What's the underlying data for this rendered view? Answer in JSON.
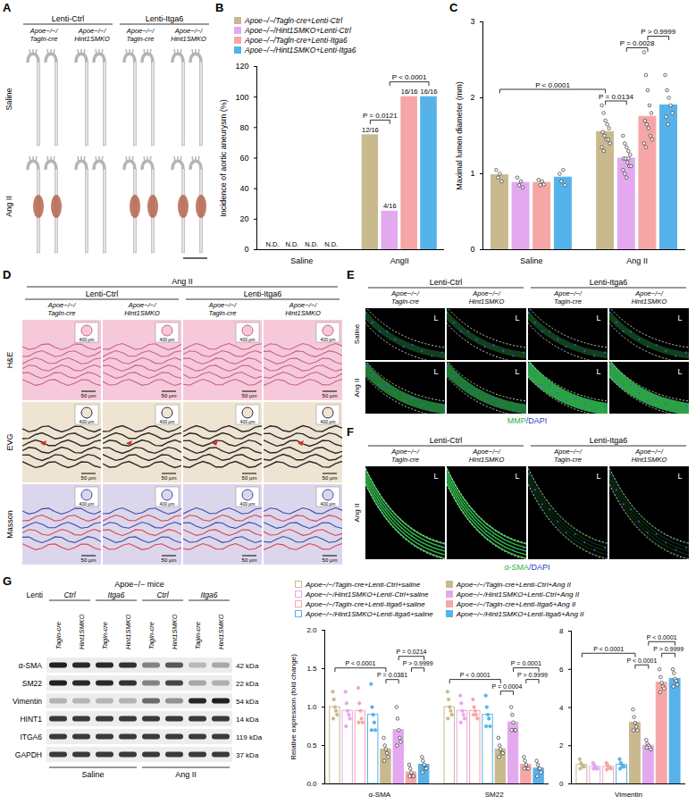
{
  "panels": [
    {
      "panel": "A",
      "column_groups": [
        "Lenti-Ctrl",
        "Lenti-Itga6"
      ],
      "genotypes": [
        "Apoe−/−/Tagln-cre",
        "Apoe−/−/Hint1SMKO"
      ],
      "rows": [
        "Saline",
        "Ang II"
      ]
    },
    {
      "panel": "D",
      "treatment": "Ang II",
      "column_groups": [
        "Lenti-Ctrl",
        "Lenti-Itga6"
      ],
      "genotypes": [
        "Apoe−/−/Tagln-cre",
        "Apoe−/−/Hint1SMKO"
      ],
      "rows": [
        "H&E",
        "EVG",
        "Masson"
      ],
      "scale_bars": [
        "50 μm",
        "400 μm"
      ]
    },
    {
      "panel": "E",
      "column_groups": [
        "Lenti-Ctrl",
        "Lenti-Itga6"
      ],
      "genotypes": [
        "Apoe−/−/Tagln-cre",
        "Apoe−/−/Hint1SMKO"
      ],
      "rows": [
        "Saline",
        "Ang II"
      ],
      "lumen": "L",
      "stain": [
        {
          "text": "MMP",
          "color": "#2fb14a"
        },
        {
          "text": "/DAPI",
          "color": "#2343c8"
        }
      ]
    },
    {
      "panel": "F",
      "column_groups": [
        "Lenti-Ctrl",
        "Lenti-Itga6"
      ],
      "genotypes": [
        "Apoe−/−/Tagln-cre",
        "Apoe−/−/Hint1SMKO"
      ],
      "rows": [
        "Ang II"
      ],
      "lumen": "L",
      "stain": [
        {
          "text": "α-SMA",
          "color": "#2fb14a"
        },
        {
          "text": "/DAPI",
          "color": "#2343c8"
        }
      ]
    },
    {
      "panel": "G",
      "title": "Apoe−/− mice",
      "lenti_label": "Lenti",
      "lentis": [
        "Ctrl",
        "Itga6",
        "Ctrl",
        "Itga6"
      ],
      "genotypes": [
        "Tagln-cre",
        "Hint1SMKO"
      ],
      "bands": [
        {
          "name": "α-SMA",
          "kda": 42
        },
        {
          "name": "SM22",
          "kda": 22
        },
        {
          "name": "Vimentin",
          "kda": 54
        },
        {
          "name": "HINT1",
          "kda": 14
        },
        {
          "name": "ITGA6",
          "kda": 119
        },
        {
          "name": "GAPDH",
          "kda": 37
        }
      ],
      "kda_unit": "kDa",
      "treatments": [
        "Saline",
        "Ang II"
      ]
    }
  ],
  "chart_data": [
    {
      "panel": "B",
      "type": "bar",
      "ylabel": "Incidence of aortic aneurysm (%)",
      "categories": [
        "Saline",
        "AngII"
      ],
      "ylim": [
        0,
        120
      ],
      "yticks": [
        0,
        20,
        40,
        60,
        80,
        100,
        120
      ],
      "legend": "top",
      "data_labels": true,
      "series": [
        {
          "name": "Apoe−/−/Tagln-cre+Lenti-Ctrl",
          "color": "#c9b98f",
          "values": [
            0,
            75
          ],
          "value_labels": [
            "N.D.",
            "12/16"
          ]
        },
        {
          "name": "Apoe−/−/Hint1SMKO+Lenti-Ctrl",
          "color": "#e3a8ee",
          "values": [
            0,
            25
          ],
          "value_labels": [
            "N.D.",
            "4/16"
          ]
        },
        {
          "name": "Apoe−/−/Tagln-cre+Lenti-Itga6",
          "color": "#f6a6a6",
          "values": [
            0,
            100
          ],
          "value_labels": [
            "N.D.",
            "16/16"
          ]
        },
        {
          "name": "Apoe−/−/Hint1SMKO+Lenti-Itga6",
          "color": "#56b2ea",
          "values": [
            0,
            100
          ],
          "value_labels": [
            "N.D.",
            "16/16"
          ]
        }
      ],
      "comparisons": [
        {
          "between": [
            {
              "category": "AngII",
              "series": "Apoe−/−/Tagln-cre+Lenti-Ctrl"
            },
            {
              "category": "AngII",
              "series": "Apoe−/−/Hint1SMKO+Lenti-Ctrl"
            }
          ],
          "label": "P = 0.0121"
        },
        {
          "between": [
            {
              "category": "AngII",
              "series": "Apoe−/−/Hint1SMKO+Lenti-Ctrl"
            },
            {
              "category": "AngII",
              "series": "Apoe−/−/Hint1SMKO+Lenti-Itga6"
            }
          ],
          "label": "P < 0.0001"
        }
      ]
    },
    {
      "panel": "C",
      "type": "bar",
      "ylabel": "Maximal lumen diameter (mm)",
      "categories": [
        "Saline",
        "Ang II"
      ],
      "ylim": [
        0,
        3
      ],
      "yticks": [
        0,
        1,
        2,
        3
      ],
      "series": [
        {
          "name": "Apoe−/−/Tagln-cre+Lenti-Ctrl",
          "color": "#c9b98f",
          "values": [
            0.98,
            1.55
          ],
          "points": [
            [
              1.05,
              0.95,
              1.0,
              0.9
            ],
            [
              1.9,
              1.8,
              1.7,
              1.65,
              1.6,
              1.55,
              1.5,
              1.45,
              1.45,
              1.4,
              1.35,
              1.3
            ]
          ]
        },
        {
          "name": "Apoe−/−/Hint1SMKO+Lenti-Ctrl",
          "color": "#e3a8ee",
          "values": [
            0.88,
            1.2
          ],
          "points": [
            [
              0.95,
              0.85,
              0.9,
              0.82
            ],
            [
              1.5,
              1.4,
              1.35,
              1.3,
              1.25,
              1.2,
              1.2,
              1.15,
              1.1,
              1.1,
              1.05,
              1.0,
              0.95,
              1.2
            ]
          ]
        },
        {
          "name": "Apoe−/−/Tagln-cre+Lenti-Itga6",
          "color": "#f6a6a6",
          "values": [
            0.88,
            1.75
          ],
          "points": [
            [
              0.92,
              0.85,
              0.9,
              0.86
            ],
            [
              2.6,
              2.3,
              2.1,
              1.9,
              1.8,
              1.7,
              1.65,
              1.6,
              1.5,
              1.45,
              1.4,
              1.35
            ]
          ]
        },
        {
          "name": "Apoe−/−/Hint1SMKO+Lenti-Itga6",
          "color": "#56b2ea",
          "values": [
            0.95,
            1.9
          ],
          "points": [
            [
              1.0,
              0.9,
              1.05,
              0.85
            ],
            [
              2.3,
              2.1,
              2.0,
              1.9,
              1.8,
              1.75,
              1.65
            ]
          ]
        }
      ],
      "comparisons": [
        {
          "between": [
            {
              "category": "Saline",
              "series": "Apoe−/−/Tagln-cre+Lenti-Ctrl"
            },
            {
              "category": "Ang II",
              "series": "Apoe−/−/Tagln-cre+Lenti-Ctrl"
            }
          ],
          "label": "P < 0.0001"
        },
        {
          "between": [
            {
              "category": "Ang II",
              "series": "Apoe−/−/Tagln-cre+Lenti-Ctrl"
            },
            {
              "category": "Ang II",
              "series": "Apoe−/−/Hint1SMKO+Lenti-Ctrl"
            }
          ],
          "label": "P = 0.0134"
        },
        {
          "between": [
            {
              "category": "Ang II",
              "series": "Apoe−/−/Hint1SMKO+Lenti-Ctrl"
            },
            {
              "category": "Ang II",
              "series": "Apoe−/−/Tagln-cre+Lenti-Itga6"
            }
          ],
          "label": "P = 0.0028"
        },
        {
          "between": [
            {
              "category": "Ang II",
              "series": "Apoe−/−/Tagln-cre+Lenti-Itga6"
            },
            {
              "category": "Ang II",
              "series": "Apoe−/−/Hint1SMKO+Lenti-Itga6"
            }
          ],
          "label": "P > 0.9999"
        }
      ]
    },
    {
      "type": "bar",
      "legend": "top",
      "categories": [
        "α-SMA",
        "SM22",
        "Vimentin"
      ],
      "subplots": [
        {
          "categories": [
            "α-SMA",
            "SM22"
          ],
          "ylabel": "Relative expression (fold change)",
          "ylim": [
            0,
            2
          ],
          "yticks": [
            {
              "value": 0,
              "label": "0.0"
            },
            0.5,
            {
              "value": 1,
              "label": "1.0"
            },
            1.5,
            {
              "value": 2,
              "label": "2.0"
            }
          ]
        },
        {
          "categories": [
            "Vimentin"
          ],
          "ylim": [
            0,
            8
          ],
          "yticks": [
            0,
            2,
            4,
            6,
            8
          ]
        }
      ],
      "series": [
        {
          "name": "Apoe−/−/Tagln-cre+Lenti-Ctrl+saline",
          "color": "#c9b98f",
          "marker": "open",
          "values": [
            1.0,
            1.0,
            1.0
          ],
          "points": [
            [
              1.2,
              1.1,
              1.0,
              0.95,
              0.9,
              0.85
            ],
            [
              1.2,
              1.1,
              1.0,
              0.95,
              0.9,
              0.85
            ],
            [
              1.3,
              1.1,
              1.0,
              0.9,
              0.9,
              0.8
            ]
          ]
        },
        {
          "name": "Apoe−/−/Hint1SMKO+Lenti-Ctrl+saline",
          "color": "#e3a8ee",
          "marker": "open",
          "values": [
            0.95,
            0.95,
            0.9
          ],
          "points": [
            [
              1.2,
              1.05,
              0.95,
              0.9,
              0.85,
              0.75
            ],
            [
              1.15,
              1.05,
              0.95,
              0.9,
              0.85,
              0.8
            ],
            [
              1.1,
              1.0,
              0.9,
              0.8,
              0.8,
              0.8
            ]
          ]
        },
        {
          "name": "Apoe−/−/Tagln-cre+Lenti-Itga6+saline",
          "color": "#f6a6a6",
          "marker": "open",
          "values": [
            0.95,
            0.95,
            0.9
          ],
          "points": [
            [
              1.25,
              1.05,
              0.95,
              0.85,
              0.8,
              0.8
            ],
            [
              1.1,
              1.0,
              0.95,
              0.9,
              0.85,
              0.9
            ],
            [
              1.1,
              1.0,
              0.9,
              0.85,
              0.8,
              0.75
            ]
          ]
        },
        {
          "name": "Apoe−/−/Hint1SMKO+Lenti-Itga6+saline",
          "color": "#56b2ea",
          "marker": "open",
          "values": [
            0.9,
            0.9,
            1.0
          ],
          "points": [
            [
              1.3,
              1.0,
              0.9,
              0.8,
              0.7,
              0.7
            ],
            [
              1.15,
              1.0,
              0.9,
              0.85,
              0.75,
              0.75
            ],
            [
              1.3,
              1.1,
              1.0,
              0.9,
              0.9,
              0.8
            ]
          ]
        },
        {
          "name": "Apoe−/−/Tagln-cre+Lenti-Ctrl+Ang II",
          "color": "#c9b98f",
          "marker": "filled",
          "values": [
            0.45,
            0.45,
            3.2
          ],
          "points": [
            [
              0.6,
              0.5,
              0.45,
              0.4,
              0.35,
              0.3
            ],
            [
              0.6,
              0.5,
              0.45,
              0.4,
              0.4,
              0.35
            ],
            [
              3.9,
              3.5,
              3.2,
              3.0,
              2.8,
              2.8
            ]
          ]
        },
        {
          "name": "Apoe−/−/Hint1SMKO+Lenti-Ctrl+Ang II",
          "color": "#e3a8ee",
          "marker": "filled",
          "values": [
            0.7,
            0.8,
            2.0
          ],
          "points": [
            [
              1.0,
              0.85,
              0.7,
              0.6,
              0.55,
              0.5
            ],
            [
              1.0,
              0.9,
              0.8,
              0.7,
              0.7,
              0.7
            ],
            [
              2.3,
              2.1,
              2.0,
              1.9,
              1.8,
              1.9
            ]
          ]
        },
        {
          "name": "Apoe−/−/Tagln-cre+Lenti-Itga6+Ang II",
          "color": "#f6a6a6",
          "marker": "filled",
          "values": [
            0.15,
            0.25,
            5.3
          ],
          "points": [
            [
              0.25,
              0.2,
              0.15,
              0.1,
              0.1,
              0.1
            ],
            [
              0.35,
              0.3,
              0.25,
              0.2,
              0.2,
              0.2
            ],
            [
              6.0,
              5.6,
              5.3,
              5.1,
              5.0,
              4.8
            ]
          ]
        },
        {
          "name": "Apoe−/−/Hint1SMKO+Lenti-Itga6+Ang II",
          "color": "#56b2ea",
          "marker": "filled",
          "values": [
            0.25,
            0.2,
            5.5
          ],
          "points": [
            [
              0.35,
              0.3,
              0.25,
              0.2,
              0.2,
              0.15
            ],
            [
              0.3,
              0.25,
              0.2,
              0.2,
              0.15,
              0.1
            ],
            [
              6.0,
              5.8,
              5.5,
              5.4,
              5.2,
              5.1
            ]
          ]
        }
      ],
      "comparisons": [
        {
          "between": [
            {
              "category": "α-SMA",
              "series": "Apoe−/−/Tagln-cre+Lenti-Ctrl+saline"
            },
            {
              "category": "α-SMA",
              "series": "Apoe−/−/Tagln-cre+Lenti-Ctrl+Ang II"
            }
          ],
          "label": "P < 0.0001"
        },
        {
          "between": [
            {
              "category": "α-SMA",
              "series": "Apoe−/−/Tagln-cre+Lenti-Ctrl+Ang II"
            },
            {
              "category": "α-SMA",
              "series": "Apoe−/−/Hint1SMKO+Lenti-Ctrl+Ang II"
            }
          ],
          "label": "P = 0.0381"
        },
        {
          "between": [
            {
              "category": "α-SMA",
              "series": "Apoe−/−/Hint1SMKO+Lenti-Ctrl+Ang II"
            },
            {
              "category": "α-SMA",
              "series": "Apoe−/−/Hint1SMKO+Lenti-Itga6+Ang II"
            }
          ],
          "label": "P = 0.0214"
        },
        {
          "between": [
            {
              "category": "α-SMA",
              "series": "Apoe−/−/Tagln-cre+Lenti-Itga6+Ang II"
            },
            {
              "category": "α-SMA",
              "series": "Apoe−/−/Hint1SMKO+Lenti-Itga6+Ang II"
            }
          ],
          "label": "P > 0.9999"
        },
        {
          "between": [
            {
              "category": "SM22",
              "series": "Apoe−/−/Tagln-cre+Lenti-Ctrl+saline"
            },
            {
              "category": "SM22",
              "series": "Apoe−/−/Tagln-cre+Lenti-Ctrl+Ang II"
            }
          ],
          "label": "P < 0.0001"
        },
        {
          "between": [
            {
              "category": "SM22",
              "series": "Apoe−/−/Tagln-cre+Lenti-Ctrl+Ang II"
            },
            {
              "category": "SM22",
              "series": "Apoe−/−/Hint1SMKO+Lenti-Ctrl+Ang II"
            }
          ],
          "label": "P = 0.0004"
        },
        {
          "between": [
            {
              "category": "SM22",
              "series": "Apoe−/−/Hint1SMKO+Lenti-Ctrl+Ang II"
            },
            {
              "category": "SM22",
              "series": "Apoe−/−/Hint1SMKO+Lenti-Itga6+Ang II"
            }
          ],
          "label": "P = 0.0001"
        },
        {
          "between": [
            {
              "category": "SM22",
              "series": "Apoe−/−/Tagln-cre+Lenti-Itga6+Ang II"
            },
            {
              "category": "SM22",
              "series": "Apoe−/−/Hint1SMKO+Lenti-Itga6+Ang II"
            }
          ],
          "label": "P > 0.9999"
        },
        {
          "between": [
            {
              "category": "Vimentin",
              "series": "Apoe−/−/Tagln-cre+Lenti-Ctrl+saline"
            },
            {
              "category": "Vimentin",
              "series": "Apoe−/−/Tagln-cre+Lenti-Ctrl+Ang II"
            }
          ],
          "label": "P < 0.0001"
        },
        {
          "between": [
            {
              "category": "Vimentin",
              "series": "Apoe−/−/Tagln-cre+Lenti-Ctrl+Ang II"
            },
            {
              "category": "Vimentin",
              "series": "Apoe−/−/Hint1SMKO+Lenti-Ctrl+Ang II"
            }
          ],
          "label": "P < 0.0001"
        },
        {
          "between": [
            {
              "category": "Vimentin",
              "series": "Apoe−/−/Hint1SMKO+Lenti-Ctrl+Ang II"
            },
            {
              "category": "Vimentin",
              "series": "Apoe−/−/Hint1SMKO+Lenti-Itga6+Ang II"
            }
          ],
          "label": "P < 0.0001"
        },
        {
          "between": [
            {
              "category": "Vimentin",
              "series": "Apoe−/−/Tagln-cre+Lenti-Itga6+Ang II"
            },
            {
              "category": "Vimentin",
              "series": "Apoe−/−/Hint1SMKO+Lenti-Itga6+Ang II"
            }
          ],
          "label": "P > 0.9999"
        }
      ]
    }
  ]
}
